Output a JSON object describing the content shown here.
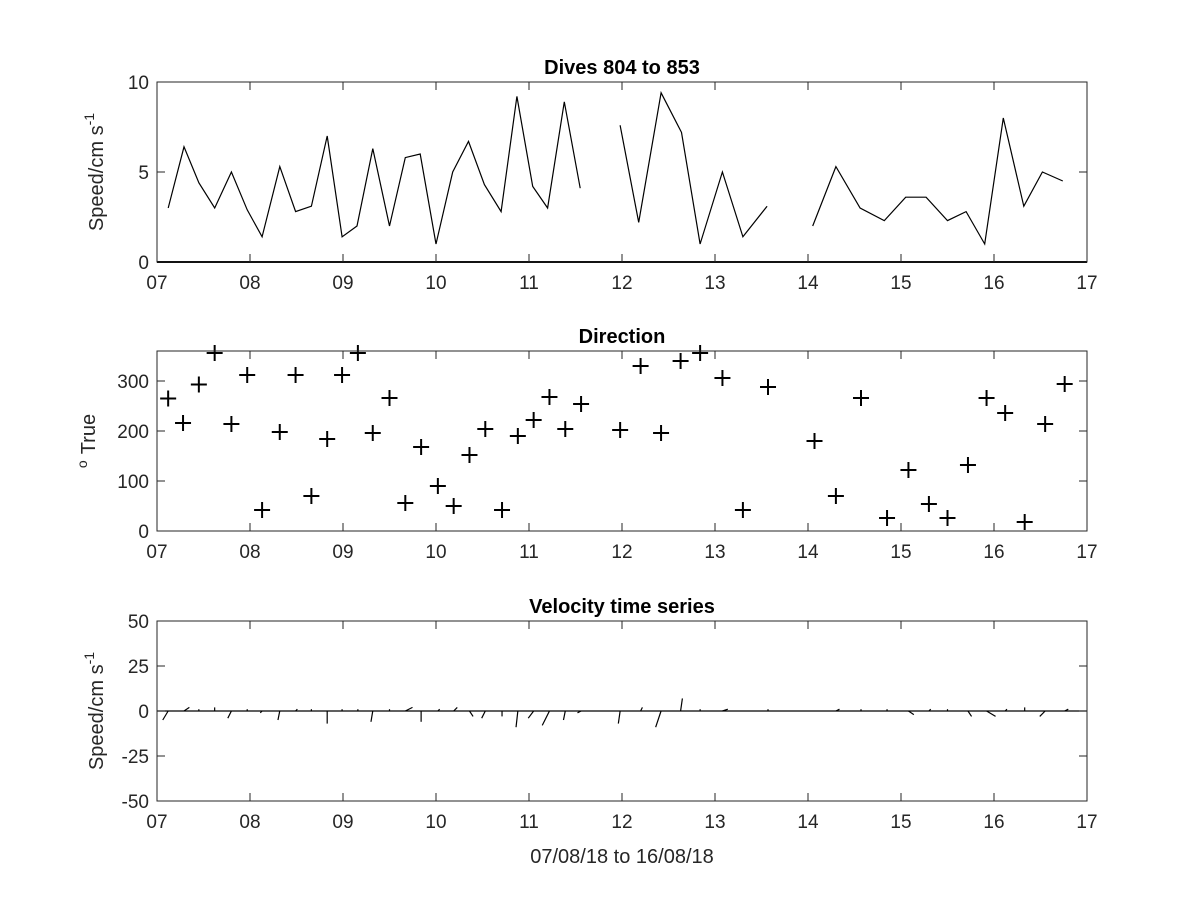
{
  "chart_data": [
    {
      "type": "line",
      "title": "Dives 804 to 853",
      "ylabel_main": "Speed/cm s",
      "ylabel_exp": "-1",
      "xlabel": "",
      "xlim": [
        7,
        17
      ],
      "ylim": [
        0,
        10
      ],
      "xticks": [
        7,
        8,
        9,
        10,
        11,
        12,
        13,
        14,
        15,
        16,
        17
      ],
      "xtick_labels": [
        "07",
        "08",
        "09",
        "10",
        "11",
        "12",
        "13",
        "14",
        "15",
        "16",
        "17"
      ],
      "yticks": [
        0,
        5,
        10
      ],
      "ytick_labels": [
        "0",
        "5",
        "10"
      ],
      "zero_line": true,
      "segments": [
        [
          [
            7.12,
            3.0
          ],
          [
            7.29,
            6.4
          ],
          [
            7.45,
            4.4
          ],
          [
            7.62,
            3.0
          ],
          [
            7.8,
            5.0
          ],
          [
            7.97,
            2.9
          ],
          [
            8.13,
            1.4
          ],
          [
            8.32,
            5.3
          ],
          [
            8.49,
            2.8
          ],
          [
            8.66,
            3.1
          ],
          [
            8.83,
            7.0
          ],
          [
            8.99,
            1.4
          ],
          [
            9.15,
            2.0
          ],
          [
            9.32,
            6.3
          ],
          [
            9.5,
            2.0
          ],
          [
            9.67,
            5.8
          ],
          [
            9.83,
            6.0
          ],
          [
            10.0,
            1.0
          ],
          [
            10.18,
            5.0
          ],
          [
            10.35,
            6.7
          ],
          [
            10.52,
            4.3
          ],
          [
            10.7,
            2.8
          ],
          [
            10.87,
            9.2
          ],
          [
            11.04,
            4.2
          ],
          [
            11.2,
            3.0
          ],
          [
            11.38,
            8.9
          ],
          [
            11.55,
            4.1
          ]
        ],
        [
          [
            11.98,
            7.6
          ],
          [
            12.18,
            2.2
          ],
          [
            12.42,
            9.4
          ],
          [
            12.64,
            7.2
          ],
          [
            12.84,
            1.0
          ],
          [
            13.08,
            5.0
          ],
          [
            13.3,
            1.4
          ],
          [
            13.56,
            3.1
          ]
        ],
        [
          [
            14.05,
            2.0
          ],
          [
            14.3,
            5.3
          ],
          [
            14.56,
            3.0
          ],
          [
            14.82,
            2.3
          ],
          [
            15.05,
            3.6
          ],
          [
            15.27,
            3.6
          ],
          [
            15.5,
            2.3
          ],
          [
            15.7,
            2.8
          ],
          [
            15.9,
            1.0
          ],
          [
            16.1,
            8.0
          ],
          [
            16.32,
            3.1
          ],
          [
            16.52,
            5.0
          ],
          [
            16.74,
            4.5
          ]
        ]
      ]
    },
    {
      "type": "scatter",
      "title": "Direction",
      "ylabel_main": "True",
      "ylabel_sup": "o",
      "xlabel": "",
      "xlim": [
        7,
        17
      ],
      "ylim": [
        0,
        360
      ],
      "xticks": [
        7,
        8,
        9,
        10,
        11,
        12,
        13,
        14,
        15,
        16,
        17
      ],
      "xtick_labels": [
        "07",
        "08",
        "09",
        "10",
        "11",
        "12",
        "13",
        "14",
        "15",
        "16",
        "17"
      ],
      "yticks": [
        0,
        100,
        200,
        300
      ],
      "ytick_labels": [
        "0",
        "100",
        "200",
        "300"
      ],
      "marker": "plus",
      "points": [
        [
          7.12,
          265
        ],
        [
          7.28,
          216
        ],
        [
          7.45,
          293
        ],
        [
          7.62,
          356
        ],
        [
          7.8,
          214
        ],
        [
          7.97,
          312
        ],
        [
          8.13,
          42
        ],
        [
          8.32,
          198
        ],
        [
          8.49,
          312
        ],
        [
          8.66,
          70
        ],
        [
          8.83,
          184
        ],
        [
          8.99,
          312
        ],
        [
          9.16,
          356
        ],
        [
          9.32,
          196
        ],
        [
          9.5,
          266
        ],
        [
          9.67,
          56
        ],
        [
          9.84,
          168
        ],
        [
          10.02,
          90
        ],
        [
          10.19,
          50
        ],
        [
          10.36,
          152
        ],
        [
          10.53,
          204
        ],
        [
          10.71,
          42
        ],
        [
          10.88,
          190
        ],
        [
          11.05,
          222
        ],
        [
          11.22,
          268
        ],
        [
          11.39,
          204
        ],
        [
          11.56,
          254
        ],
        [
          11.98,
          202
        ],
        [
          12.2,
          330
        ],
        [
          12.42,
          196
        ],
        [
          12.63,
          340
        ],
        [
          12.84,
          356
        ],
        [
          13.08,
          306
        ],
        [
          13.3,
          42
        ],
        [
          13.57,
          288
        ],
        [
          14.07,
          180
        ],
        [
          14.3,
          70
        ],
        [
          14.57,
          266
        ],
        [
          14.85,
          26
        ],
        [
          15.08,
          122
        ],
        [
          15.3,
          54
        ],
        [
          15.5,
          26
        ],
        [
          15.72,
          132
        ],
        [
          15.92,
          266
        ],
        [
          16.12,
          236
        ],
        [
          16.33,
          18
        ],
        [
          16.55,
          214
        ],
        [
          16.76,
          294
        ]
      ]
    },
    {
      "type": "stick",
      "title": "Velocity time series",
      "ylabel_main": "Speed/cm s",
      "ylabel_exp": "-1",
      "xlabel": "07/08/18 to 16/08/18",
      "xlim": [
        7,
        17
      ],
      "ylim": [
        -50,
        50
      ],
      "xticks": [
        7,
        8,
        9,
        10,
        11,
        12,
        13,
        14,
        15,
        16,
        17
      ],
      "xtick_labels": [
        "07",
        "08",
        "09",
        "10",
        "11",
        "12",
        "13",
        "14",
        "15",
        "16",
        "17"
      ],
      "yticks": [
        -50,
        -25,
        0,
        25,
        50
      ],
      "ytick_labels": [
        "-50",
        "-25",
        "0",
        "25",
        "50"
      ],
      "baseline": true,
      "sticks": [
        [
          7.12,
          -3,
          -5
        ],
        [
          7.29,
          3,
          2
        ],
        [
          7.45,
          0,
          1
        ],
        [
          7.62,
          0,
          2
        ],
        [
          7.8,
          -2,
          -4
        ],
        [
          7.97,
          0,
          1
        ],
        [
          8.13,
          -1,
          -1
        ],
        [
          8.32,
          -1,
          -5
        ],
        [
          8.49,
          1,
          1
        ],
        [
          8.66,
          0,
          1
        ],
        [
          8.83,
          0,
          -7
        ],
        [
          8.99,
          0,
          1
        ],
        [
          9.16,
          0,
          1
        ],
        [
          9.32,
          -1,
          -6
        ],
        [
          9.5,
          0,
          1
        ],
        [
          9.67,
          4,
          2
        ],
        [
          9.84,
          0,
          -6
        ],
        [
          10.02,
          1,
          1
        ],
        [
          10.19,
          2,
          2
        ],
        [
          10.36,
          2,
          -3
        ],
        [
          10.53,
          -2,
          -4
        ],
        [
          10.71,
          0,
          -3
        ],
        [
          10.88,
          -1,
          -9
        ],
        [
          11.05,
          -3,
          -4
        ],
        [
          11.22,
          -4,
          -8
        ],
        [
          11.39,
          -1,
          -5
        ],
        [
          11.56,
          -2,
          -1
        ],
        [
          11.98,
          -1,
          -7
        ],
        [
          12.2,
          1,
          2
        ],
        [
          12.42,
          -3,
          -9
        ],
        [
          12.63,
          1,
          7
        ],
        [
          12.84,
          0,
          1
        ],
        [
          13.08,
          3,
          1
        ],
        [
          13.3,
          0,
          0
        ],
        [
          13.57,
          0,
          1
        ],
        [
          14.07,
          0,
          0
        ],
        [
          14.3,
          2,
          1
        ],
        [
          14.57,
          0,
          1
        ],
        [
          14.85,
          0,
          1
        ],
        [
          15.08,
          3,
          -2
        ],
        [
          15.3,
          1,
          1
        ],
        [
          15.5,
          0,
          1
        ],
        [
          15.72,
          2,
          -3
        ],
        [
          15.92,
          5,
          -3
        ],
        [
          16.12,
          1,
          1
        ],
        [
          16.33,
          0,
          2
        ],
        [
          16.55,
          -3,
          -3
        ],
        [
          16.76,
          2,
          1
        ]
      ]
    }
  ]
}
